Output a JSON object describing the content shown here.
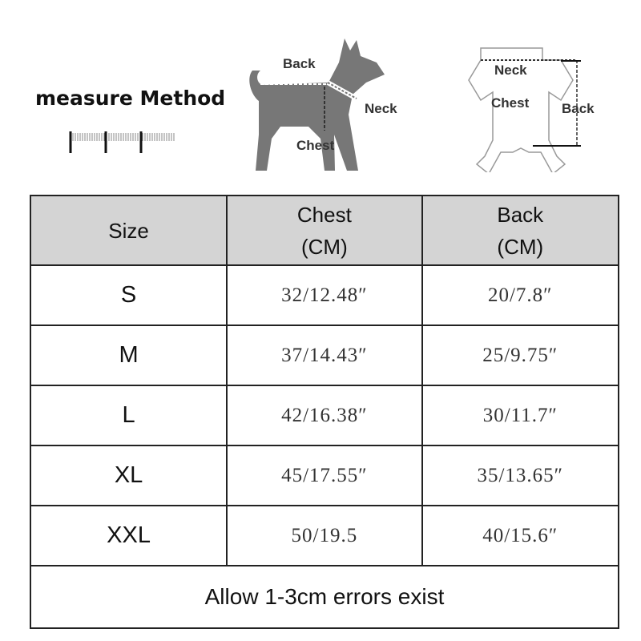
{
  "header": {
    "title": "measure Method",
    "dog_labels": {
      "back": "Back",
      "neck": "Neck",
      "chest": "Chest"
    },
    "garment_labels": {
      "neck": "Neck",
      "chest": "Chest",
      "back": "Back"
    }
  },
  "table": {
    "columns": [
      {
        "line1": "Size",
        "line2": ""
      },
      {
        "line1": "Chest",
        "line2": "(CM)"
      },
      {
        "line1": "Back",
        "line2": "(CM)"
      }
    ],
    "rows": [
      {
        "size": "S",
        "chest": "32/12.48″",
        "back": "20/7.8″"
      },
      {
        "size": "M",
        "chest": "37/14.43″",
        "back": "25/9.75″"
      },
      {
        "size": "L",
        "chest": "42/16.38″",
        "back": "30/11.7″"
      },
      {
        "size": "XL",
        "chest": "45/17.55″",
        "back": "35/13.65″"
      },
      {
        "size": "XXL",
        "chest": "50/19.5",
        "back": "40/15.6″"
      }
    ],
    "footer": "Allow 1-3cm errors exist",
    "header_bg": "#d4d4d4"
  }
}
